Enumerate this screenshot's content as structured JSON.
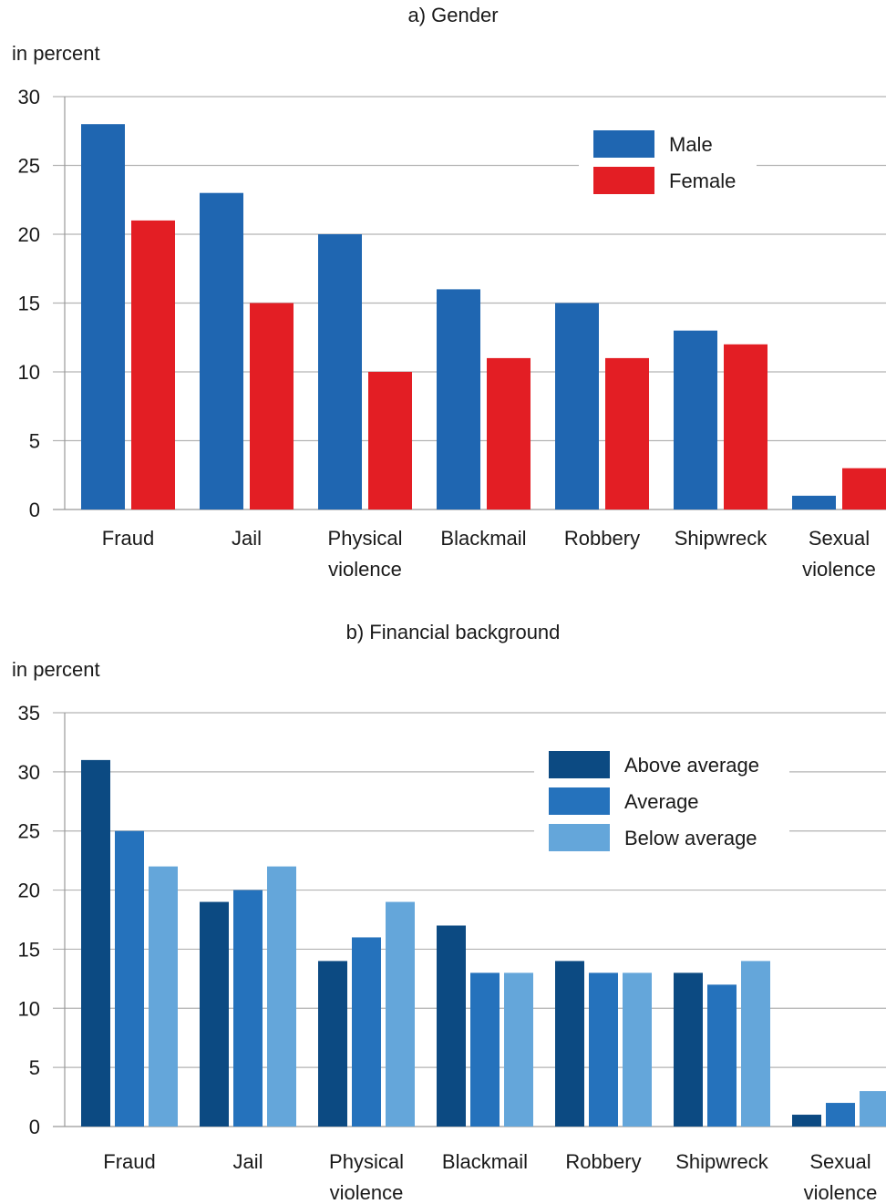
{
  "colors": {
    "grid": "#b3b3b3",
    "axis": "#999999",
    "text": "#1a1a1a"
  },
  "chart_data": [
    {
      "type": "bar",
      "title": "a) Gender",
      "ylabel": "in percent",
      "xlabel": "",
      "ylim": [
        0,
        30
      ],
      "yticks": [
        0,
        5,
        10,
        15,
        20,
        25,
        30
      ],
      "grid": true,
      "legend_position": "top-right",
      "categories": [
        [
          "Fraud"
        ],
        [
          "Jail"
        ],
        [
          "Physical",
          "violence"
        ],
        [
          "Blackmail"
        ],
        [
          "Robbery"
        ],
        [
          "Shipwreck"
        ],
        [
          "Sexual",
          "violence"
        ]
      ],
      "series": [
        {
          "name": "Male",
          "color": "#1f66b1",
          "values": [
            28,
            23,
            20,
            16,
            15,
            13,
            1
          ]
        },
        {
          "name": "Female",
          "color": "#e31e24",
          "values": [
            21,
            15,
            10,
            11,
            11,
            12,
            3
          ]
        }
      ]
    },
    {
      "type": "bar",
      "title": "b) Financial background",
      "ylabel": "in percent",
      "xlabel": "",
      "ylim": [
        0,
        35
      ],
      "yticks": [
        0,
        5,
        10,
        15,
        20,
        25,
        30,
        35
      ],
      "grid": true,
      "legend_position": "top-right",
      "categories": [
        [
          "Fraud"
        ],
        [
          "Jail"
        ],
        [
          "Physical",
          "violence"
        ],
        [
          "Blackmail"
        ],
        [
          "Robbery"
        ],
        [
          "Shipwreck"
        ],
        [
          "Sexual",
          "violence"
        ]
      ],
      "series": [
        {
          "name": "Above average",
          "color": "#0c4a82",
          "values": [
            31,
            19,
            14,
            17,
            14,
            13,
            1
          ]
        },
        {
          "name": "Average",
          "color": "#2572bc",
          "values": [
            25,
            20,
            16,
            13,
            13,
            12,
            2
          ]
        },
        {
          "name": "Below average",
          "color": "#64a6da",
          "values": [
            22,
            22,
            19,
            13,
            13,
            14,
            3
          ]
        }
      ]
    }
  ]
}
